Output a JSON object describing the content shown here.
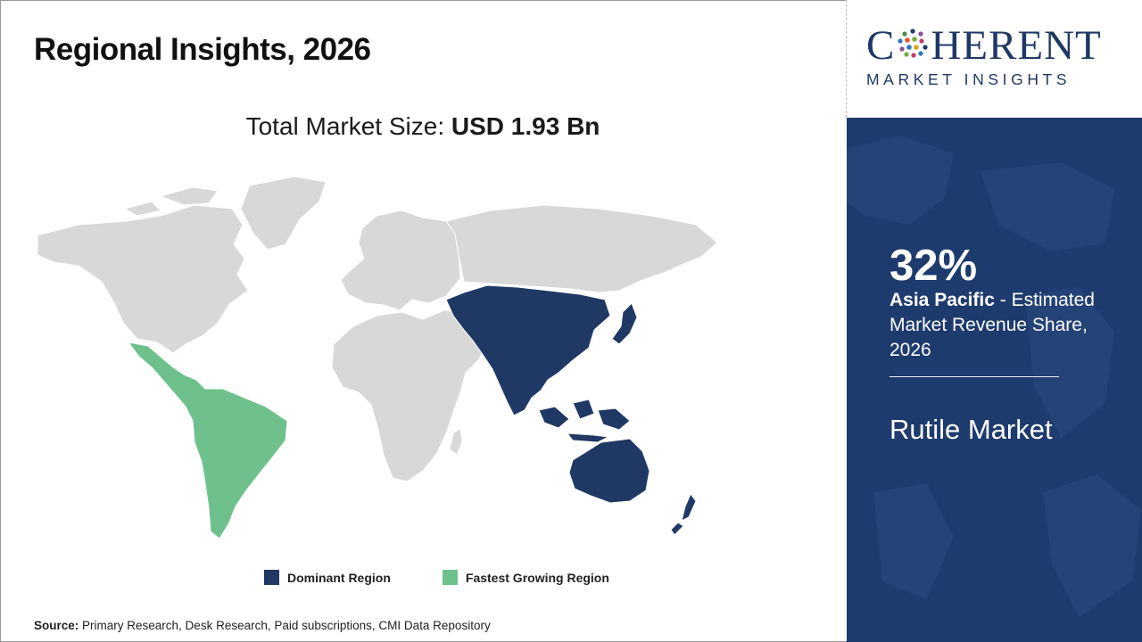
{
  "header": {
    "title": "Regional Insights, 2026"
  },
  "market_size": {
    "label": "Total Market Size:",
    "value": "USD 1.93 Bn"
  },
  "map": {
    "regions": [
      {
        "name": "Asia Pacific",
        "category": "dominant"
      },
      {
        "name": "Latin America",
        "category": "fastest"
      },
      {
        "name": "North America",
        "category": "other"
      },
      {
        "name": "Europe",
        "category": "other"
      },
      {
        "name": "Middle East & Africa",
        "category": "other"
      }
    ],
    "colors": {
      "dominant": "#1f3864",
      "fastest": "#6ec18d",
      "other": "#d8d8d8",
      "border": "#ffffff"
    }
  },
  "legend": {
    "dominant_label": "Dominant Region",
    "fastest_label": "Fastest Growing Region"
  },
  "source": {
    "label": "Source:",
    "text": "Primary Research, Desk Research, Paid subscriptions, CMI Data Repository"
  },
  "logo": {
    "main_left": "C",
    "main_right": "HERENT",
    "sub": "MARKET INSIGHTS"
  },
  "side_panel": {
    "share": "32%",
    "region": "Asia Pacific",
    "description": " - Estimated Market Revenue Share, 2026",
    "market_name": "Rutile Market",
    "background_color": "#1e3b6e"
  }
}
